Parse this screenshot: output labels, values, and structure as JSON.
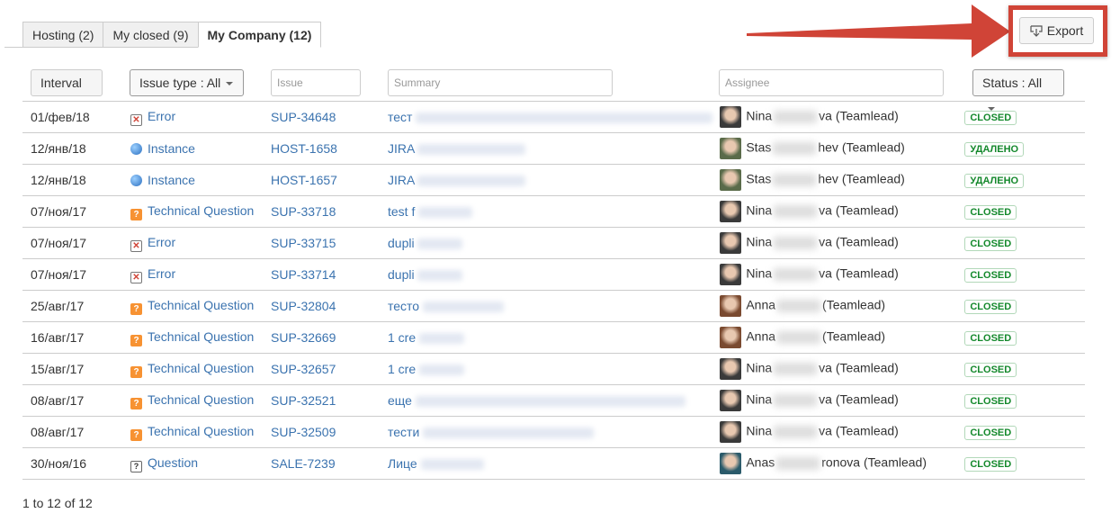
{
  "tabs": [
    {
      "label": "Hosting (2)"
    },
    {
      "label": "My closed (9)"
    },
    {
      "label": "My Company (12)",
      "active": true
    }
  ],
  "export": {
    "label": "Export",
    "icon": "download-icon"
  },
  "annotation": {
    "color": "#d04437"
  },
  "filters": {
    "interval": "Interval",
    "issue_type": "Issue type : All",
    "issue_placeholder": "Issue",
    "summary_placeholder": "Summary",
    "assignee_placeholder": "Assignee",
    "status": "Status : All"
  },
  "rows": [
    {
      "date": "01/фев/18",
      "type": "Error",
      "icon": "error",
      "issue": "SUP-34648",
      "summary": "тест",
      "assignee": "Nina",
      "assignee_suffix": "va (Teamlead)",
      "avatar": "#3a3a3a",
      "status": "CLOSED"
    },
    {
      "date": "12/янв/18",
      "type": "Instance",
      "icon": "instance",
      "issue": "HOST-1658",
      "summary": "JIRA",
      "assignee": "Stas",
      "assignee_suffix": "hev (Teamlead)",
      "avatar": "#5a6b4a",
      "status": "УДАЛЕНО"
    },
    {
      "date": "12/янв/18",
      "type": "Instance",
      "icon": "instance",
      "issue": "HOST-1657",
      "summary": "JIRA",
      "assignee": "Stas",
      "assignee_suffix": "hev (Teamlead)",
      "avatar": "#5a6b4a",
      "status": "УДАЛЕНО"
    },
    {
      "date": "07/ноя/17",
      "type": "Technical Question",
      "icon": "technical-question",
      "issue": "SUP-33718",
      "summary": "test f",
      "assignee": "Nina",
      "assignee_suffix": "va (Teamlead)",
      "avatar": "#3a3a3a",
      "status": "CLOSED"
    },
    {
      "date": "07/ноя/17",
      "type": "Error",
      "icon": "error",
      "issue": "SUP-33715",
      "summary": "dupli",
      "assignee": "Nina",
      "assignee_suffix": "va (Teamlead)",
      "avatar": "#3a3a3a",
      "status": "CLOSED"
    },
    {
      "date": "07/ноя/17",
      "type": "Error",
      "icon": "error",
      "issue": "SUP-33714",
      "summary": "dupli",
      "assignee": "Nina",
      "assignee_suffix": "va (Teamlead)",
      "avatar": "#3a3a3a",
      "status": "CLOSED"
    },
    {
      "date": "25/авг/17",
      "type": "Technical Question",
      "icon": "technical-question",
      "issue": "SUP-32804",
      "summary": "тесто",
      "assignee": "Anna",
      "assignee_suffix": "(Teamlead)",
      "avatar": "#7a4a30",
      "status": "CLOSED"
    },
    {
      "date": "16/авг/17",
      "type": "Technical Question",
      "icon": "technical-question",
      "issue": "SUP-32669",
      "summary": "1 cre",
      "assignee": "Anna",
      "assignee_suffix": "(Teamlead)",
      "avatar": "#7a4a30",
      "status": "CLOSED"
    },
    {
      "date": "15/авг/17",
      "type": "Technical Question",
      "icon": "technical-question",
      "issue": "SUP-32657",
      "summary": "1 cre",
      "assignee": "Nina",
      "assignee_suffix": "va (Teamlead)",
      "avatar": "#3a3a3a",
      "status": "CLOSED"
    },
    {
      "date": "08/авг/17",
      "type": "Technical Question",
      "icon": "technical-question",
      "issue": "SUP-32521",
      "summary": "еще",
      "assignee": "Nina",
      "assignee_suffix": "va (Teamlead)",
      "avatar": "#3a3a3a",
      "status": "CLOSED"
    },
    {
      "date": "08/авг/17",
      "type": "Technical Question",
      "icon": "technical-question",
      "issue": "SUP-32509",
      "summary": "тести",
      "assignee": "Nina",
      "assignee_suffix": "va (Teamlead)",
      "avatar": "#3a3a3a",
      "status": "CLOSED"
    },
    {
      "date": "30/ноя/16",
      "type": "Question",
      "icon": "question",
      "issue": "SALE-7239",
      "summary": "Лице",
      "assignee": "Anas",
      "assignee_suffix": "ronova (Teamlead)",
      "avatar": "#2a5a6a",
      "status": "CLOSED"
    }
  ],
  "footer": "1 to 12 of 12"
}
